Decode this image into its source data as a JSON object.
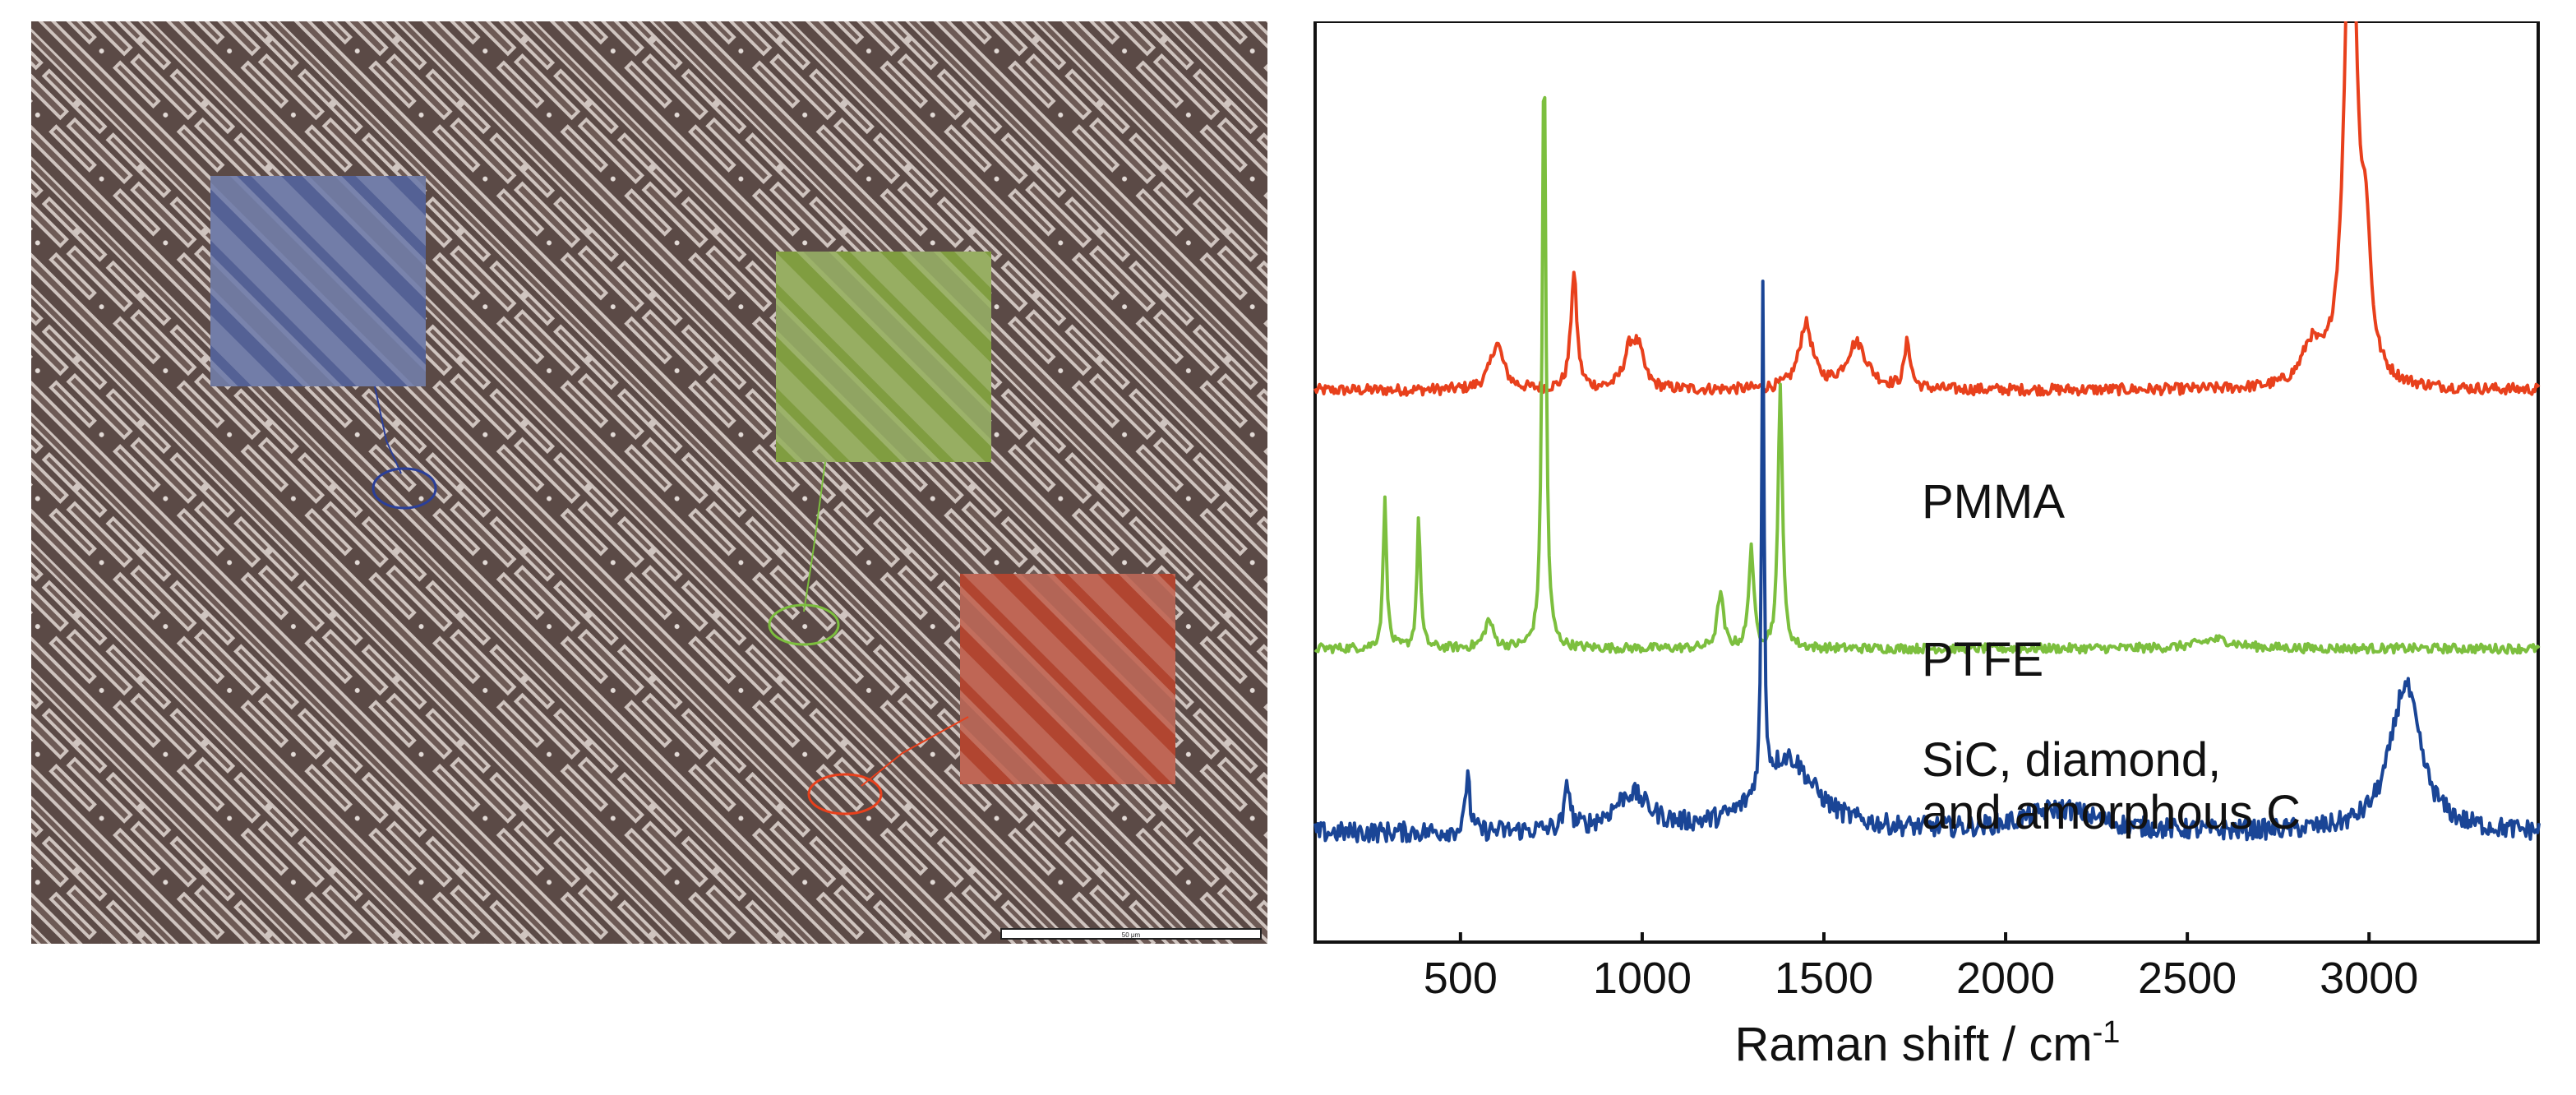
{
  "chart_data": {
    "type": "line",
    "xlabel": "Raman shift / cm",
    "xlabel_superscript": "-1",
    "xlim": [
      100,
      3470
    ],
    "xticks": [
      500,
      1000,
      1500,
      2000,
      2500,
      3000
    ],
    "y_axis": "no ticks or labels (arbitrary intensity, offset traces)",
    "grid": false,
    "series": [
      {
        "name": "PMMA",
        "color": "#e8401c",
        "baseline": 0.6,
        "noise": 0.006,
        "peaks": [
          {
            "x": 600,
            "h": 0.05,
            "w": 22
          },
          {
            "x": 812,
            "h": 0.125,
            "w": 10
          },
          {
            "x": 966,
            "h": 0.04,
            "w": 20
          },
          {
            "x": 990,
            "h": 0.035,
            "w": 18
          },
          {
            "x": 1450,
            "h": 0.07,
            "w": 22
          },
          {
            "x": 1590,
            "h": 0.05,
            "w": 35
          },
          {
            "x": 1730,
            "h": 0.05,
            "w": 10
          },
          {
            "x": 2840,
            "h": 0.04,
            "w": 30
          },
          {
            "x": 2950,
            "h": 0.58,
            "w": 20
          },
          {
            "x": 2992,
            "h": 0.12,
            "w": 14
          }
        ]
      },
      {
        "name": "PTFE",
        "color": "#7cbf3e",
        "baseline": 0.32,
        "noise": 0.005,
        "peaks": [
          {
            "x": 292,
            "h": 0.16,
            "w": 6
          },
          {
            "x": 385,
            "h": 0.14,
            "w": 6
          },
          {
            "x": 578,
            "h": 0.03,
            "w": 14
          },
          {
            "x": 730,
            "h": 0.66,
            "w": 6
          },
          {
            "x": 1215,
            "h": 0.06,
            "w": 10
          },
          {
            "x": 1300,
            "h": 0.11,
            "w": 8
          },
          {
            "x": 1380,
            "h": 0.29,
            "w": 7
          },
          {
            "x": 2580,
            "h": 0.01,
            "w": 60
          }
        ]
      },
      {
        "name": "SiC, diamond, and amorphous C",
        "color": "#1a4596",
        "baseline": 0.12,
        "noise": 0.011,
        "peaks": [
          {
            "x": 520,
            "h": 0.07,
            "w": 6
          },
          {
            "x": 795,
            "h": 0.05,
            "w": 8
          },
          {
            "x": 970,
            "h": 0.04,
            "w": 60
          },
          {
            "x": 1332,
            "h": 0.54,
            "w": 4
          },
          {
            "x": 1400,
            "h": 0.08,
            "w": 90
          },
          {
            "x": 2150,
            "h": 0.025,
            "w": 120
          },
          {
            "x": 3100,
            "h": 0.16,
            "w": 50
          }
        ]
      }
    ],
    "annotations": [
      "PMMA",
      "PTFE",
      "SiC, diamond,",
      "and amorphous C"
    ]
  },
  "sem_image": {
    "scale_bar_label": "50 μm",
    "colors": {
      "background": "#5b4a46",
      "line": "#c6bcb7",
      "blue_overlay": "#6676b6",
      "green_overlay": "#9cbf4e",
      "red_overlay": "#d8543a"
    }
  }
}
